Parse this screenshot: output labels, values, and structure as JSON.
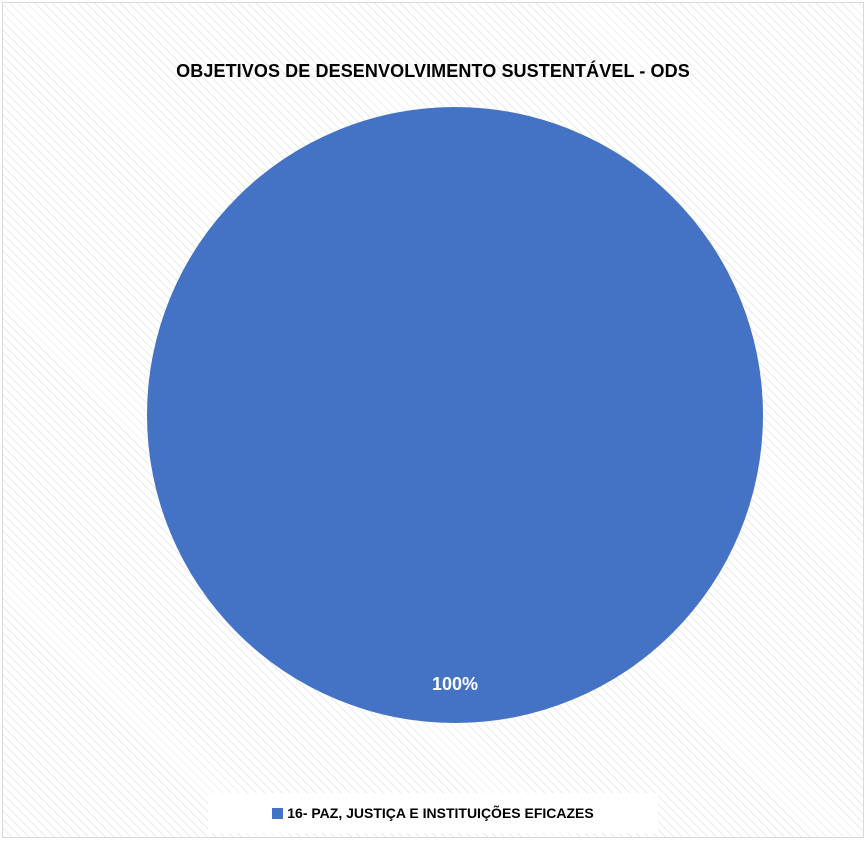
{
  "chart_data": {
    "type": "pie",
    "title": "OBJETIVOS DE DESENVOLVIMENTO SUSTENTÁVEL - ODS",
    "categories": [
      "16- PAZ, JUSTIÇA E INSTITUIÇÕES EFICAZES"
    ],
    "values": [
      100
    ],
    "data_labels": [
      "100%"
    ],
    "colors": [
      "#4472C4"
    ],
    "legend_position": "bottom"
  }
}
